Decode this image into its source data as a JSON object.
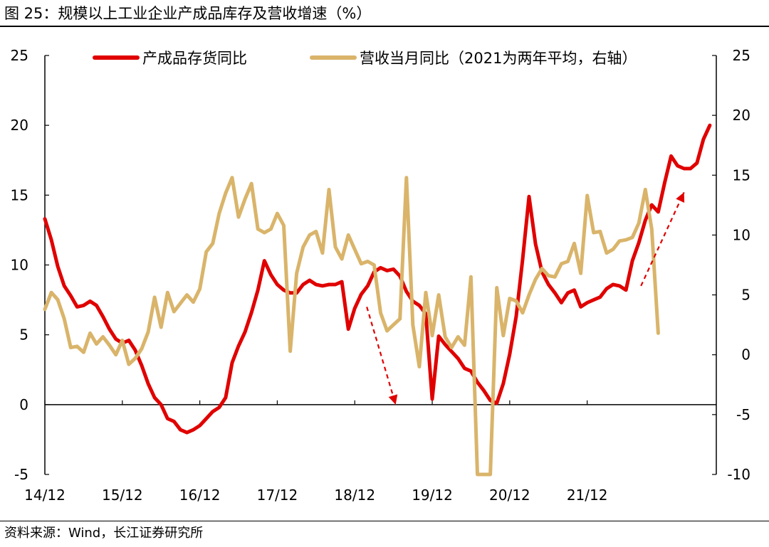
{
  "title": "图 25：规模以上工业企业产成品库存及营收增速（%）",
  "source": "资料来源：Wind，长江证券研究所",
  "chart_data": {
    "type": "line",
    "x_tick_labels": [
      "14/12",
      "15/12",
      "16/12",
      "17/12",
      "18/12",
      "19/12",
      "20/12",
      "21/12"
    ],
    "y_left_ticks": [
      25,
      20,
      15,
      10,
      5,
      0,
      -5
    ],
    "y_right_ticks": [
      25,
      20,
      15,
      10,
      5,
      0,
      -5,
      -10
    ],
    "ylim_left": [
      -5,
      25
    ],
    "ylim_right": [
      -10,
      25
    ],
    "colors": {
      "inventory": "#e00000",
      "revenue": "#d9b46a",
      "arrow": "#e00000"
    },
    "series": [
      {
        "name": "产成品存货同比",
        "axis": "left",
        "values": [
          13.3,
          11.8,
          9.9,
          8.5,
          7.8,
          7.0,
          7.1,
          7.4,
          7.1,
          6.3,
          5.4,
          4.7,
          4.4,
          4.6,
          3.9,
          2.8,
          1.5,
          0.5,
          0.0,
          -1.0,
          -1.2,
          -1.8,
          -2.0,
          -1.8,
          -1.5,
          -1.0,
          -0.5,
          -0.2,
          0.5,
          3.0,
          4.2,
          5.2,
          6.6,
          8.2,
          10.3,
          9.3,
          8.6,
          8.2,
          8.0,
          8.0,
          8.6,
          8.9,
          8.6,
          8.5,
          8.6,
          8.6,
          8.8,
          5.4,
          6.9,
          7.9,
          8.5,
          9.5,
          9.8,
          9.6,
          9.7,
          9.2,
          8.1,
          7.4,
          7.1,
          6.5,
          0.4,
          4.9,
          4.3,
          3.8,
          3.3,
          2.6,
          2.4,
          1.6,
          1.0,
          0.3,
          0.1,
          1.5,
          3.6,
          6.3,
          10.4,
          14.9,
          11.5,
          9.5,
          8.6,
          8.0,
          7.3,
          8.0,
          8.2,
          7.0,
          7.3,
          7.5,
          7.7,
          8.3,
          8.6,
          8.5,
          8.2,
          10.3,
          11.6,
          13.2,
          14.3,
          13.8,
          15.9,
          17.8,
          17.1,
          16.9,
          16.9,
          17.3,
          19.0,
          20.0
        ]
      },
      {
        "name": "营收当月同比（2021为两年平均，右轴）",
        "axis": "right",
        "values": [
          3.8,
          5.2,
          4.6,
          3.0,
          0.6,
          0.7,
          0.2,
          1.8,
          0.9,
          1.5,
          0.8,
          0.0,
          1.2,
          -0.8,
          -0.3,
          0.5,
          1.9,
          4.8,
          2.3,
          5.2,
          3.6,
          4.3,
          5.0,
          4.4,
          5.5,
          8.6,
          9.3,
          11.8,
          13.5,
          14.8,
          11.5,
          13.0,
          14.3,
          10.5,
          10.2,
          10.5,
          11.8,
          10.8,
          0.3,
          6.8,
          9.0,
          10.0,
          10.3,
          8.5,
          13.8,
          9.0,
          8.0,
          10.0,
          8.8,
          7.6,
          7.8,
          7.5,
          3.5,
          2.0,
          2.5,
          3.0,
          14.8,
          2.5,
          -1.0,
          5.2,
          1.6,
          5.0,
          1.5,
          0.6,
          1.5,
          0.8,
          6.5,
          -10.0,
          -11.0,
          -13.0,
          5.6,
          1.6,
          4.7,
          4.5,
          3.5,
          5.0,
          6.3,
          7.2,
          6.6,
          6.5,
          7.6,
          7.8,
          9.3,
          6.8,
          13.3,
          10.2,
          10.3,
          8.5,
          8.8,
          9.5,
          9.6,
          9.8,
          11.0,
          13.8,
          10.5,
          1.8
        ]
      }
    ],
    "annotations": [
      {
        "type": "arrow",
        "from": [
          74.8,
          7.0
        ],
        "to": [
          81.5,
          0.0
        ],
        "axis": "left",
        "color": "#e00000"
      },
      {
        "type": "arrow",
        "from": [
          138.5,
          8.5
        ],
        "to": [
          148.5,
          15.2
        ],
        "axis": "left",
        "color": "#e00000"
      }
    ]
  }
}
